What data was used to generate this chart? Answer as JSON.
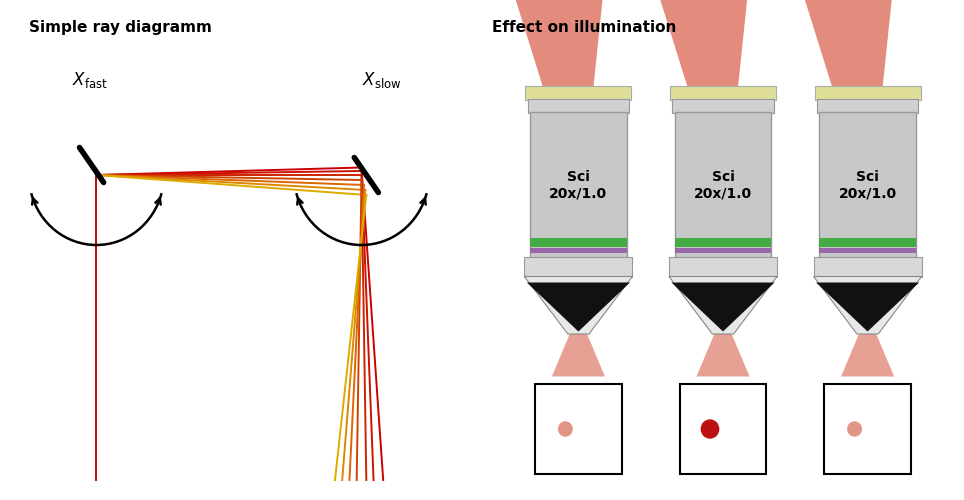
{
  "title_left": "Simple ray diagramm",
  "title_right": "Effect on illumination",
  "bg_color": "#ffffff",
  "lens_label": "Sci\n20x/1.0",
  "beam_color": "#e08878",
  "dot_colors": [
    "#e09585",
    "#bb1111",
    "#e09585"
  ],
  "lens_gray": "#c8c8c8",
  "lens_light_gray": "#d8d8d8",
  "lens_top_yellow": "#dede99",
  "stripe_green": "#44aa44",
  "stripe_purple": "#9966aa",
  "ray_colors_h": [
    "#cc0000",
    "#cc1100",
    "#cc2200",
    "#cc4400",
    "#dd6600",
    "#dd8800",
    "#ddaa00"
  ],
  "ray_colors_v": [
    "#cc0000",
    "#cc1100",
    "#cc2200",
    "#cc4400",
    "#dd6600",
    "#dd8800",
    "#ddaa00"
  ]
}
